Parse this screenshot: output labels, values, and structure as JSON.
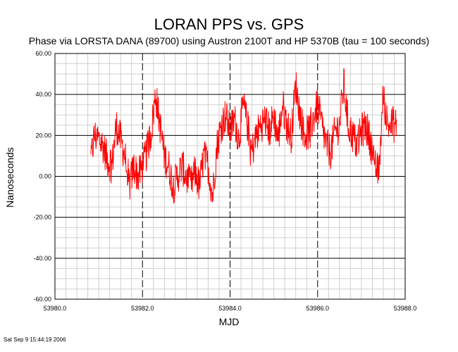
{
  "chart_data": {
    "type": "line",
    "title": "LORAN PPS vs. GPS",
    "subtitle": "Phase via LORSTA DANA (89700) using Austron 2100T and HP 5370B (tau = 100 seconds)",
    "xlabel": "MJD",
    "ylabel": "Nanoseconds",
    "xlim": [
      53980.0,
      53988.0
    ],
    "ylim": [
      -60.0,
      60.0
    ],
    "x_ticks": [
      "53980.0",
      "53982.0",
      "53984.0",
      "53986.0",
      "53988.0"
    ],
    "y_ticks": [
      "60.00",
      "40.00",
      "20.00",
      "0.00",
      "-20.00",
      "-40.00",
      "-60.00"
    ],
    "grid": true,
    "series": [
      {
        "color": "#ff0000",
        "x": [
          53980.82,
          53980.9,
          53981.0,
          53981.1,
          53981.2,
          53981.3,
          53981.4,
          53981.5,
          53981.6,
          53981.7,
          53981.8,
          53981.9,
          53982.0,
          53982.1,
          53982.2,
          53982.3,
          53982.4,
          53982.5,
          53982.6,
          53982.7,
          53982.8,
          53982.9,
          53983.0,
          53983.1,
          53983.2,
          53983.3,
          53983.4,
          53983.5,
          53983.6,
          53983.7,
          53983.8,
          53983.9,
          53984.0,
          53984.1,
          53984.2,
          53984.3,
          53984.4,
          53984.5,
          53984.6,
          53984.7,
          53984.8,
          53984.9,
          53985.0,
          53985.1,
          53985.2,
          53985.3,
          53985.4,
          53985.5,
          53985.6,
          53985.7,
          53985.8,
          53985.9,
          53986.0,
          53986.1,
          53986.2,
          53986.3,
          53986.4,
          53986.5,
          53986.6,
          53986.7,
          53986.8,
          53986.9,
          53987.0,
          53987.1,
          53987.2,
          53987.3,
          53987.4,
          53987.5,
          53987.6,
          53987.8
        ],
        "values": [
          8,
          20,
          18,
          15,
          8,
          5,
          25,
          18,
          10,
          -5,
          5,
          0,
          5,
          12,
          22,
          40,
          25,
          10,
          5,
          -5,
          0,
          5,
          0,
          -5,
          2,
          -5,
          10,
          5,
          -10,
          15,
          25,
          30,
          22,
          28,
          18,
          35,
          25,
          12,
          20,
          25,
          28,
          22,
          30,
          18,
          35,
          25,
          20,
          45,
          30,
          20,
          22,
          28,
          35,
          25,
          15,
          12,
          22,
          25,
          45,
          25,
          20,
          15,
          22,
          25,
          18,
          5,
          2,
          40,
          25,
          25
        ]
      }
    ],
    "annotations": {
      "footer": "Sat Sep  9 15:44:19 2006"
    }
  }
}
